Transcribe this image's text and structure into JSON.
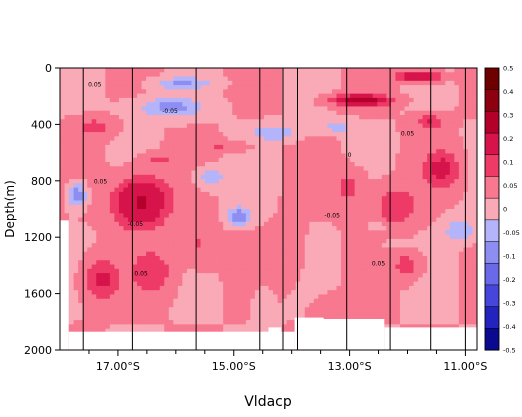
{
  "chart_data": {
    "type": "heatmap",
    "xlabel": "Vldacp",
    "ylabel": "Depth(m)",
    "x_unit": "degrees latitude (S positive)",
    "xlim": [
      18.0,
      10.8
    ],
    "ylim": [
      0,
      2000
    ],
    "y_reversed": true,
    "x_ticks": [
      {
        "value": 17.0,
        "label": "17.00°S"
      },
      {
        "value": 15.0,
        "label": "15.00°S"
      },
      {
        "value": 13.0,
        "label": "13.00°S"
      },
      {
        "value": 11.0,
        "label": "11.00°S"
      }
    ],
    "x_minor_ticks": [
      17.5,
      16.5,
      16.0,
      15.5,
      14.5,
      14.0,
      13.5,
      12.5,
      12.0,
      11.5
    ],
    "y_ticks": [
      0,
      400,
      800,
      1200,
      1600,
      2000
    ],
    "station_positions": [
      17.6,
      16.75,
      15.65,
      14.55,
      14.15,
      13.9,
      13.05,
      12.3,
      11.6,
      11.0
    ],
    "colorbar": {
      "levels": [
        0.5,
        0.4,
        0.3,
        0.2,
        0.1,
        0.05,
        0,
        -0.05,
        -0.1,
        -0.2,
        -0.3,
        -0.4,
        -0.5
      ],
      "labels": [
        "0.5",
        "0.4",
        "0.3",
        "0.2",
        "0.1",
        "0.05",
        "0",
        "-0.05",
        "-0.1",
        "-0.2",
        "-0.3",
        "-0.4",
        "-0.5"
      ],
      "colors": [
        "#6e0000",
        "#8c0010",
        "#b3002a",
        "#d6134a",
        "#ee3a67",
        "#f7788f",
        "#f9aab6",
        "#b4b4fa",
        "#8e8ef2",
        "#6a6ae8",
        "#4646dc",
        "#2323be",
        "#0a0a90"
      ]
    },
    "zero_contour_values": [
      0,
      0.05
    ],
    "contour_labels": [
      "0.05",
      "-0.05",
      "0.05",
      "-0.05",
      "0.05",
      "0",
      "0.05",
      "-0.05",
      "0.05"
    ],
    "no_data_color": "#ffffff"
  }
}
